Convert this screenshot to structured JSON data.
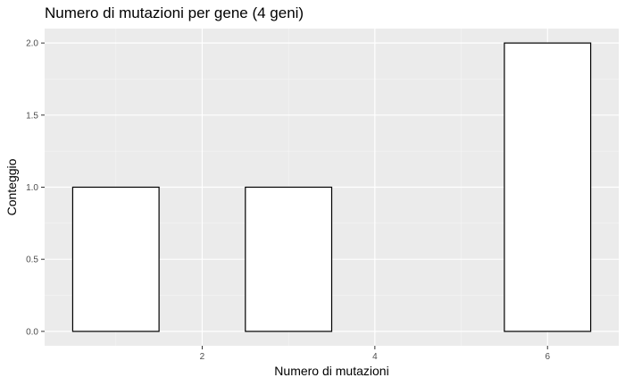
{
  "chart_data": {
    "type": "bar",
    "title": "Numero di mutazioni per gene (4 geni)",
    "xlabel": "Numero di mutazioni",
    "ylabel": "Conteggio",
    "bins": [
      {
        "x_start": 0.5,
        "x_end": 1.5,
        "count": 1
      },
      {
        "x_start": 2.5,
        "x_end": 3.5,
        "count": 1
      },
      {
        "x_start": 5.5,
        "x_end": 6.5,
        "count": 2
      }
    ],
    "xlim": [
      0.175,
      6.825
    ],
    "ylim": [
      -0.1,
      2.1
    ],
    "x_ticks": [
      2,
      4,
      6
    ],
    "x_minor_ticks": [
      1,
      3,
      5
    ],
    "y_ticks": [
      0.0,
      0.5,
      1.0,
      1.5,
      2.0
    ],
    "y_tick_labels": [
      "0.0",
      "0.5",
      "1.0",
      "1.5",
      "2.0"
    ],
    "x_tick_labels": [
      "2",
      "4",
      "6"
    ],
    "grid": true,
    "colors": {
      "panel_background": "#ebebeb",
      "grid_major": "#ffffff",
      "grid_minor": "#f5f5f5",
      "bar_fill": "#ffffff",
      "bar_outline": "#000000",
      "tick_mark": "#333333",
      "tick_label": "#4d4d4d"
    }
  }
}
